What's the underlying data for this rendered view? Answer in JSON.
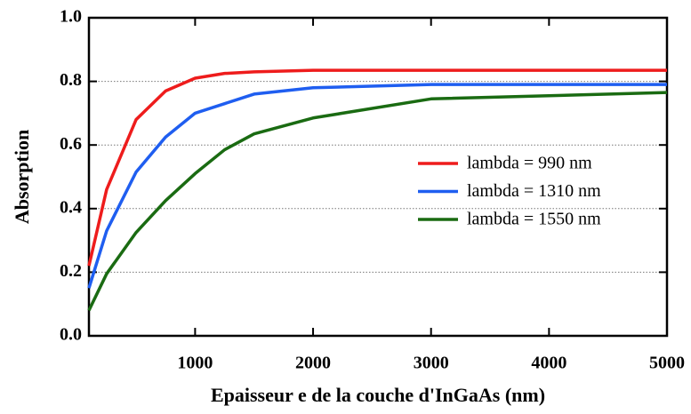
{
  "chart_data": {
    "type": "line",
    "xlabel": "Epaisseur e de la couche d'InGaAs (nm)",
    "ylabel": "Absorption",
    "x": [
      100,
      250,
      500,
      750,
      1000,
      1250,
      1500,
      2000,
      3000,
      5000
    ],
    "series": [
      {
        "name": "lambda = 990 nm",
        "color": "#ee1c1c",
        "values": [
          0.22,
          0.46,
          0.68,
          0.77,
          0.81,
          0.825,
          0.83,
          0.835,
          0.835,
          0.835
        ]
      },
      {
        "name": "lambda = 1310 nm",
        "color": "#1f5ef0",
        "values": [
          0.15,
          0.33,
          0.515,
          0.625,
          0.7,
          0.73,
          0.76,
          0.78,
          0.79,
          0.79
        ]
      },
      {
        "name": "lambda = 1550 nm",
        "color": "#1a6b12",
        "values": [
          0.08,
          0.195,
          0.325,
          0.425,
          0.51,
          0.585,
          0.635,
          0.685,
          0.745,
          0.765
        ]
      }
    ],
    "xlim": [
      100,
      5000
    ],
    "xticks": [
      1000,
      2000,
      3000,
      4000,
      5000
    ],
    "ylim": [
      0,
      1
    ],
    "yticks": [
      {
        "value": 0,
        "label": "0.0"
      },
      0.2,
      0.4,
      0.6,
      0.8,
      {
        "value": 1,
        "label": "1.0"
      }
    ],
    "grid": true,
    "legend": "right"
  }
}
